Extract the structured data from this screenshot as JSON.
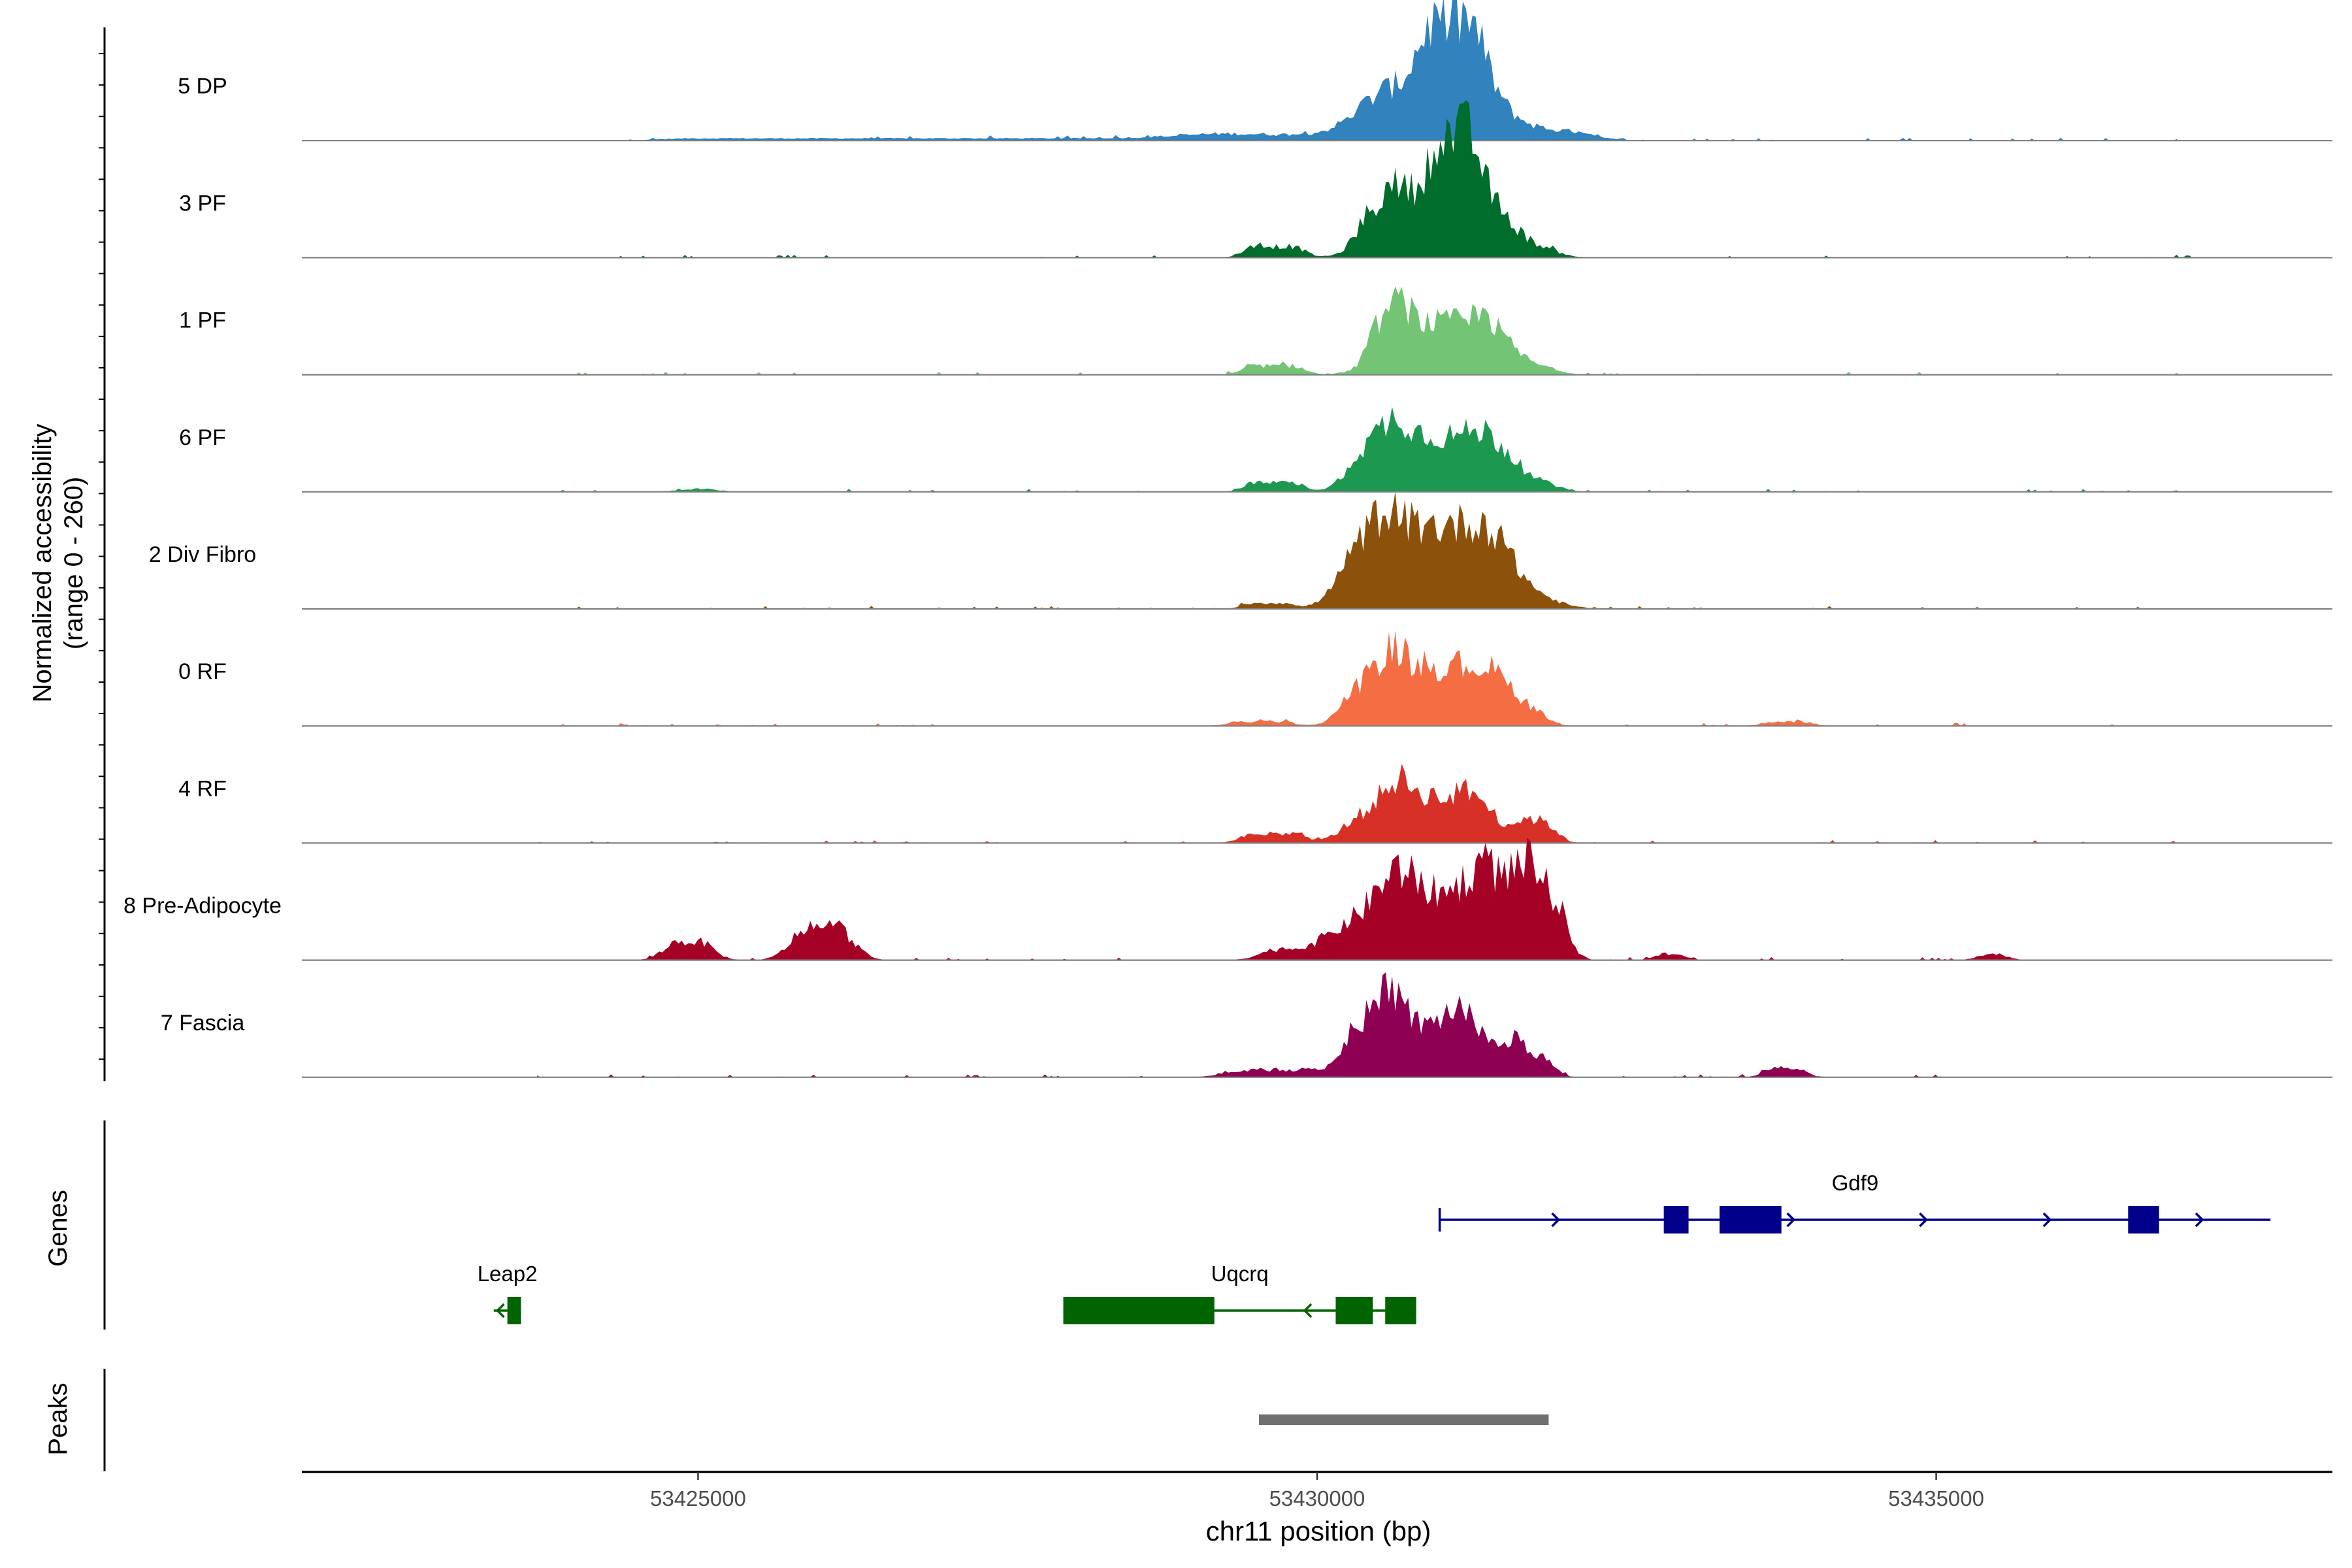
{
  "chart_data": {
    "type": "area",
    "subtype": "genome-coverage-track",
    "chromosome": "chr11",
    "xlabel": "chr11 position (bp)",
    "ylabel_line1": "Normalized accessibility",
    "ylabel_line2": "(range 0 - 260)",
    "y_range": [
      0,
      260
    ],
    "xlim": [
      53421800,
      53438200
    ],
    "x_ticks": [
      53425000,
      53430000,
      53435000
    ],
    "x_tick_labels": [
      "53425000",
      "53430000",
      "53435000"
    ],
    "tracks": [
      {
        "name": "5 DP",
        "color": "#3182BD",
        "peaks": [
          [
            53429500,
            53431300,
            8,
            500
          ],
          [
            53430600,
            53431200,
            60,
            250
          ],
          [
            53430950,
            53431200,
            90,
            140
          ],
          [
            53431450,
            53432000,
            10,
            200
          ],
          [
            53425000,
            53429000,
            3,
            300
          ]
        ]
      },
      {
        "name": "3 PF",
        "color": "#006D2C",
        "peaks": [
          [
            53429500,
            53429800,
            15,
            100
          ],
          [
            53430400,
            53430650,
            25,
            90
          ],
          [
            53430700,
            53431300,
            75,
            230
          ],
          [
            53431000,
            53431200,
            90,
            100
          ],
          [
            53431400,
            53431800,
            10,
            150
          ]
        ]
      },
      {
        "name": "1 PF",
        "color": "#74C476",
        "peaks": [
          [
            53429500,
            53429800,
            12,
            100
          ],
          [
            53430500,
            53430650,
            35,
            80
          ],
          [
            53430750,
            53431300,
            70,
            220
          ],
          [
            53431400,
            53431800,
            8,
            150
          ]
        ]
      },
      {
        "name": "6 PF",
        "color": "#1D9850",
        "peaks": [
          [
            53425000,
            53425000,
            4,
            150
          ],
          [
            53429500,
            53429800,
            12,
            100
          ],
          [
            53430350,
            53430600,
            30,
            120
          ],
          [
            53430700,
            53431300,
            75,
            240
          ],
          [
            53431400,
            53431800,
            8,
            150
          ]
        ]
      },
      {
        "name": "2 Div Fibro",
        "color": "#8C510A",
        "peaks": [
          [
            53429500,
            53429700,
            8,
            100
          ],
          [
            53430300,
            53430500,
            25,
            150
          ],
          [
            53430600,
            53431300,
            110,
            250
          ],
          [
            53431400,
            53431800,
            8,
            200
          ]
        ]
      },
      {
        "name": "0 RF",
        "color": "#F46D43",
        "peaks": [
          [
            53429400,
            53429700,
            6,
            120
          ],
          [
            53430300,
            53430550,
            35,
            120
          ],
          [
            53430700,
            53431300,
            80,
            220
          ],
          [
            53431550,
            53431750,
            15,
            100
          ],
          [
            53433700,
            53433900,
            6,
            100
          ]
        ]
      },
      {
        "name": "4 RF",
        "color": "#D73027",
        "peaks": [
          [
            53429500,
            53429800,
            12,
            120
          ],
          [
            53430350,
            53430600,
            30,
            150
          ],
          [
            53430700,
            53431200,
            60,
            180
          ],
          [
            53431300,
            53431700,
            12,
            150
          ],
          [
            53431700,
            53431850,
            20,
            90
          ]
        ]
      },
      {
        "name": "8 Pre-Adipocyte",
        "color": "#A50026",
        "peaks": [
          [
            53424850,
            53425000,
            25,
            120
          ],
          [
            53425900,
            53426100,
            45,
            140
          ],
          [
            53429700,
            53430000,
            15,
            150
          ],
          [
            53430300,
            53430600,
            40,
            180
          ],
          [
            53430700,
            53431300,
            85,
            220
          ],
          [
            53431350,
            53431700,
            45,
            140
          ],
          [
            53431700,
            53431900,
            70,
            110
          ],
          [
            53432800,
            53432900,
            8,
            80
          ],
          [
            53435400,
            53435500,
            8,
            80
          ]
        ]
      },
      {
        "name": "7 Fascia",
        "color": "#8E0152",
        "peaks": [
          [
            53429500,
            53430000,
            10,
            200
          ],
          [
            53430350,
            53430550,
            70,
            120
          ],
          [
            53430700,
            53431100,
            65,
            160
          ],
          [
            53431200,
            53431500,
            35,
            150
          ],
          [
            53431650,
            53431800,
            25,
            100
          ],
          [
            53433700,
            53433850,
            12,
            90
          ]
        ]
      }
    ],
    "genes_label": "Genes",
    "genes": [
      {
        "name": "Gdf9",
        "strand": "+",
        "color": "#00008B",
        "start": 53430990,
        "end": 53437700,
        "row": 1,
        "exons": [
          [
            53432800,
            53433000
          ],
          [
            53433250,
            53433750
          ],
          [
            53436550,
            53436800
          ]
        ],
        "arrows": [
          53431950,
          53433850,
          53434920,
          53435920,
          53437150
        ]
      },
      {
        "name": "Uqcrq",
        "strand": "-",
        "color": "#006400",
        "start": 53427950,
        "end": 53430800,
        "row": 2,
        "exons": [
          [
            53427950,
            53429170
          ],
          [
            53430150,
            53430450
          ],
          [
            53430550,
            53430800
          ]
        ],
        "arrows": [
          53429900
        ]
      },
      {
        "name": "Leap2",
        "strand": "-",
        "color": "#006400",
        "start": 53423350,
        "end": 53423570,
        "row": 2,
        "exons": [
          [
            53423460,
            53423570
          ]
        ],
        "arrows": [
          53423380
        ]
      }
    ],
    "peaks_label": "Peaks",
    "peak_regions": [
      [
        53429530,
        53431870
      ]
    ]
  }
}
